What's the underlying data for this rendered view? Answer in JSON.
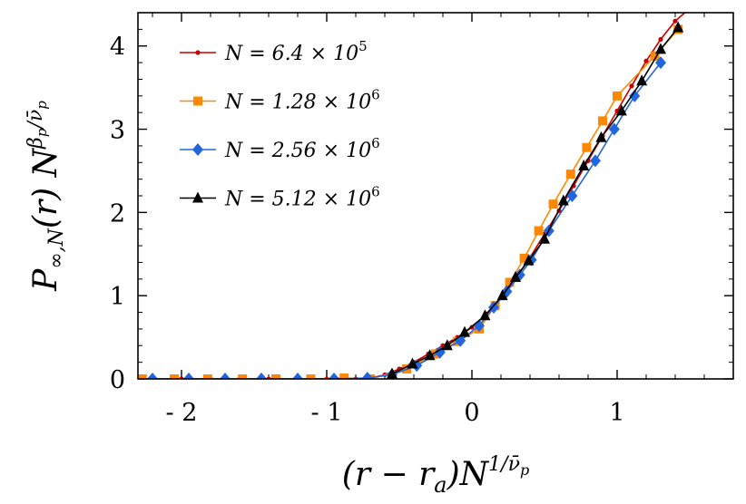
{
  "chart_data": {
    "type": "line",
    "xlabel": "(r − r_a)N^{1/ν̄_p}",
    "ylabel": "P_{∞,N}(r) N^{β_p/ν̄_p}",
    "xlabel_parts": {
      "main": "(r − r",
      "sub": "a",
      "after": ")N",
      "sup": "1/ν̄",
      "supsub": "p"
    },
    "ylabel_parts": {
      "main": "P",
      "sub": "∞,N",
      "after": "(r) N",
      "sup": "β",
      "supsub": "p",
      "sup2": "/ν̄",
      "supsub2": "p"
    },
    "xlim": [
      -2.3,
      1.8
    ],
    "ylim": [
      0,
      4.4
    ],
    "xticks": [
      -2,
      -1,
      0,
      1
    ],
    "xtick_labels": [
      "- 2",
      "- 1",
      "0",
      "1"
    ],
    "yticks": [
      0,
      1,
      2,
      3,
      4
    ],
    "ytick_labels": [
      "0",
      "1",
      "2",
      "3",
      "4"
    ],
    "grid": false,
    "legend_position": "top-left",
    "series": [
      {
        "name": "N = 6.4 × 10^5",
        "legend": {
          "pre": "N = 6.4 × 10",
          "sup": "5"
        },
        "color": "#cc0000",
        "marker": "dot",
        "x": [
          -2.3,
          -2.2,
          -2.0,
          -1.8,
          -1.6,
          -1.4,
          -1.2,
          -1.0,
          -0.8,
          -0.7,
          -0.6,
          -0.5,
          -0.4,
          -0.3,
          -0.2,
          -0.1,
          0.0,
          0.1,
          0.2,
          0.3,
          0.4,
          0.5,
          0.6,
          0.7,
          0.8,
          0.9,
          1.0,
          1.1,
          1.2,
          1.3,
          1.4,
          1.5
        ],
        "y": [
          0.0,
          0.0,
          0.0,
          0.0,
          0.0,
          0.0,
          0.0,
          0.0,
          0.0,
          0.01,
          0.05,
          0.12,
          0.2,
          0.3,
          0.4,
          0.5,
          0.62,
          0.78,
          0.98,
          1.2,
          1.46,
          1.74,
          2.02,
          2.32,
          2.62,
          2.92,
          3.22,
          3.52,
          3.82,
          4.08,
          4.3,
          4.45
        ]
      },
      {
        "name": "N = 1.28 × 10^6",
        "legend": {
          "pre": "N = 1.28 × 10",
          "sup": "6"
        },
        "color": "#ff8800",
        "marker": "square",
        "x": [
          -2.27,
          -2.05,
          -1.82,
          -1.58,
          -1.35,
          -1.11,
          -0.88,
          -0.7,
          -0.45,
          -0.25,
          -0.1,
          0.05,
          0.16,
          0.26,
          0.36,
          0.46,
          0.56,
          0.68,
          0.79,
          0.9,
          1.0,
          1.26,
          1.42
        ],
        "y": [
          0.0,
          0.0,
          0.0,
          0.0,
          0.0,
          0.0,
          0.01,
          0.0,
          0.12,
          0.3,
          0.45,
          0.6,
          0.88,
          1.16,
          1.45,
          1.78,
          2.1,
          2.46,
          2.78,
          3.1,
          3.4,
          3.88,
          4.2
        ]
      },
      {
        "name": "N = 2.56 × 10^6",
        "legend": {
          "pre": "N = 2.56 × 10",
          "sup": "6"
        },
        "color": "#2266dd",
        "marker": "diamond",
        "x": [
          -2.2,
          -1.95,
          -1.7,
          -1.45,
          -1.2,
          -0.95,
          -0.72,
          -0.55,
          -0.38,
          -0.22,
          -0.08,
          0.05,
          0.15,
          0.24,
          0.33,
          0.41,
          0.53,
          0.69,
          0.85,
          0.98,
          1.12,
          1.3
        ],
        "y": [
          0.0,
          0.0,
          0.0,
          0.0,
          0.0,
          0.0,
          0.01,
          0.05,
          0.16,
          0.32,
          0.46,
          0.64,
          0.86,
          1.05,
          1.25,
          1.43,
          1.78,
          2.2,
          2.62,
          3.0,
          3.4,
          3.8
        ]
      },
      {
        "name": "N = 5.12 × 10^6",
        "legend": {
          "pre": "N = 5.12 × 10",
          "sup": "6"
        },
        "color": "#000000",
        "marker": "triangle",
        "x": [
          -0.55,
          -0.41,
          -0.29,
          -0.17,
          -0.05,
          0.09,
          0.21,
          0.3,
          0.39,
          0.5,
          0.63,
          0.77,
          0.89,
          1.03,
          1.17,
          1.3,
          1.42
        ],
        "y": [
          0.06,
          0.18,
          0.28,
          0.4,
          0.56,
          0.76,
          1.0,
          1.22,
          1.42,
          1.68,
          2.14,
          2.56,
          2.9,
          3.22,
          3.58,
          3.96,
          4.22
        ]
      }
    ]
  }
}
